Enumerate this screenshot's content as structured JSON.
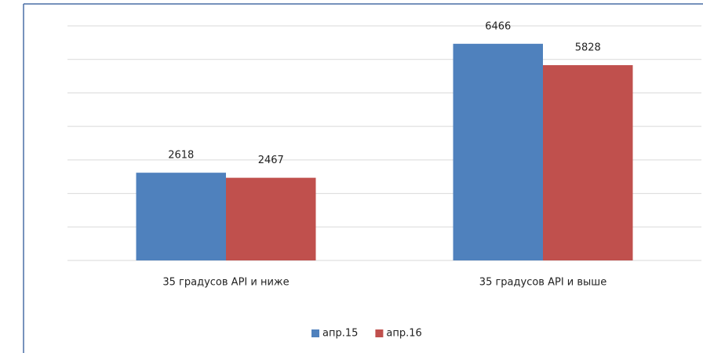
{
  "chart_data": {
    "type": "bar",
    "categories": [
      "35 градусов API и ниже",
      "35 градусов API и выше"
    ],
    "series": [
      {
        "name": "апр.15",
        "color": "#4f81bd",
        "values": [
          2618,
          6466
        ]
      },
      {
        "name": "апр.16",
        "color": "#c0504d",
        "values": [
          2467,
          5828
        ]
      }
    ],
    "ylim": [
      0,
      7000
    ],
    "yticks": [
      0,
      1000,
      2000,
      3000,
      4000,
      5000,
      6000,
      7000
    ],
    "grid": true,
    "legend": "bottom"
  }
}
